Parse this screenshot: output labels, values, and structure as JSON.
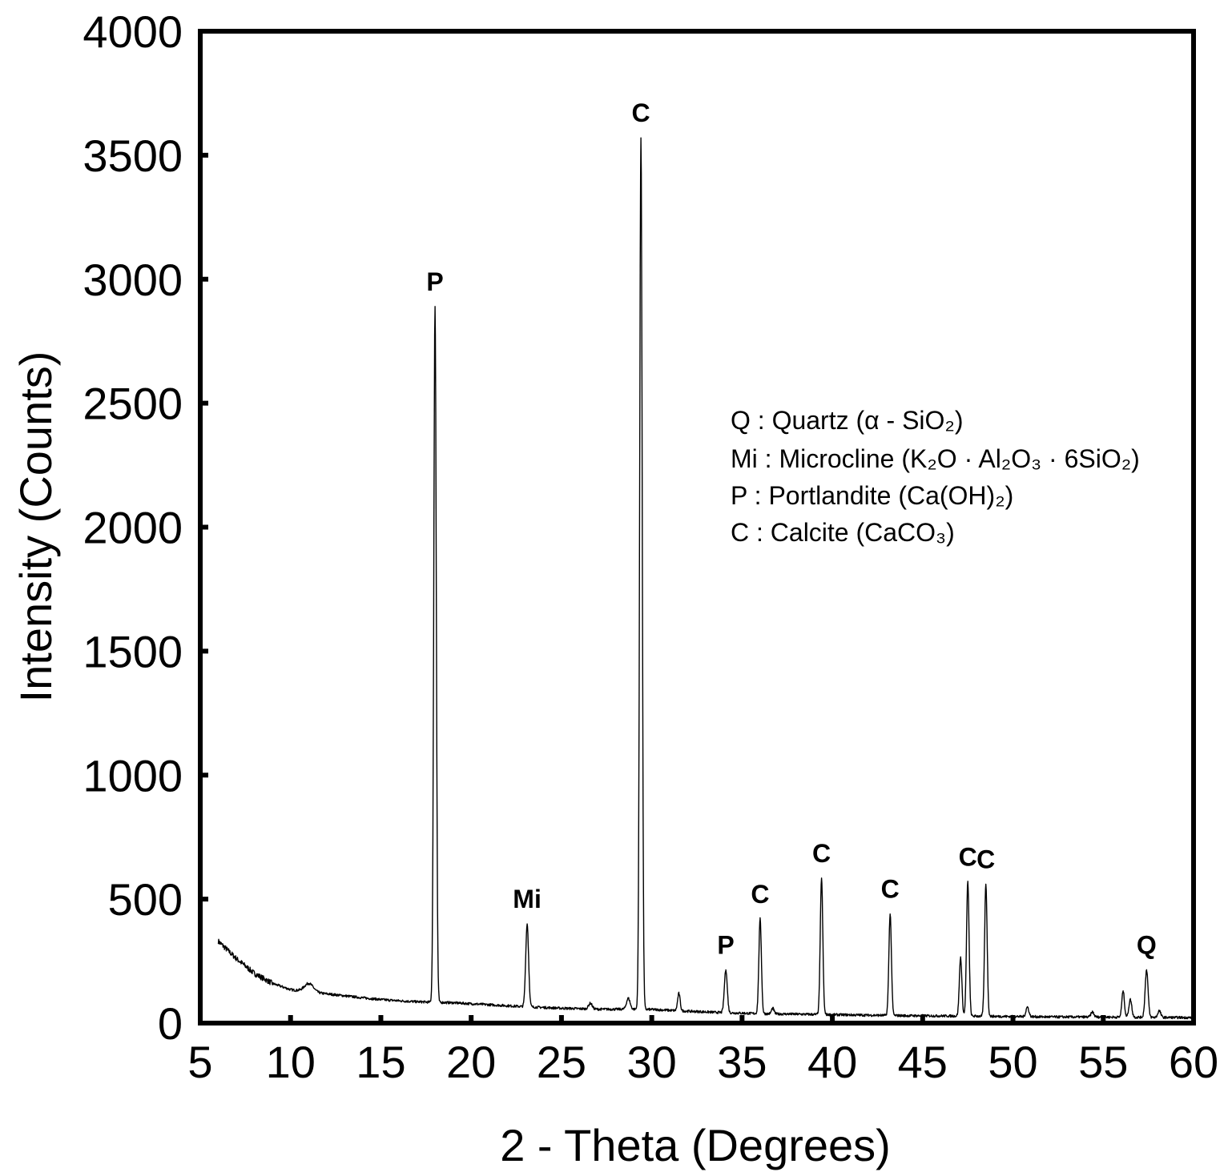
{
  "chart_data": {
    "type": "line",
    "xlabel": "2 - Theta (Degrees)",
    "ylabel": "Intensity (Counts)",
    "xlim": [
      5,
      60
    ],
    "ylim": [
      0,
      4000
    ],
    "x_ticks": [
      "5",
      "10",
      "15",
      "20",
      "25",
      "30",
      "35",
      "40",
      "45",
      "50",
      "55",
      "60"
    ],
    "y_ticks": [
      "0",
      "500",
      "1000",
      "1500",
      "2000",
      "2500",
      "3000",
      "3500",
      "4000"
    ],
    "grid": false,
    "legend_position": "upper-right",
    "legend": [
      "Q  : Quartz (α - SiO₂)",
      "Mi : Microcline (K₂O · Al₂O₃ · 6SiO₂)",
      "P  : Portlandite (Ca(OH)₂)",
      "C  : Calcite (CaCO₃)"
    ],
    "baseline": [
      [
        6.0,
        330
      ],
      [
        7.0,
        260
      ],
      [
        8.0,
        200
      ],
      [
        9.0,
        160
      ],
      [
        10.0,
        135
      ],
      [
        11.0,
        125
      ],
      [
        12.0,
        118
      ],
      [
        13.0,
        110
      ],
      [
        14.0,
        102
      ],
      [
        15.0,
        95
      ],
      [
        16.0,
        90
      ],
      [
        17.0,
        86
      ],
      [
        18.0,
        84
      ],
      [
        19.0,
        82
      ],
      [
        20.0,
        78
      ],
      [
        21.0,
        74
      ],
      [
        22.0,
        70
      ],
      [
        23.0,
        66
      ],
      [
        24.0,
        63
      ],
      [
        25.0,
        60
      ],
      [
        26.0,
        58
      ],
      [
        27.0,
        56
      ],
      [
        28.0,
        56
      ],
      [
        29.0,
        56
      ],
      [
        30.0,
        55
      ],
      [
        32.0,
        48
      ],
      [
        34.0,
        42
      ],
      [
        36.0,
        38
      ],
      [
        38.0,
        36
      ],
      [
        40.0,
        34
      ],
      [
        44.0,
        30
      ],
      [
        48.0,
        28
      ],
      [
        52.0,
        25
      ],
      [
        56.0,
        24
      ],
      [
        60.0,
        22
      ]
    ],
    "peaks": [
      {
        "x": 11.0,
        "y": 160,
        "w": 0.25
      },
      {
        "x": 18.0,
        "y": 2890,
        "w": 0.07,
        "label": "P"
      },
      {
        "x": 23.1,
        "y": 400,
        "w": 0.08,
        "label": "Mi"
      },
      {
        "x": 26.6,
        "y": 80,
        "w": 0.1
      },
      {
        "x": 28.7,
        "y": 100,
        "w": 0.1
      },
      {
        "x": 29.4,
        "y": 3570,
        "w": 0.07,
        "label": "C"
      },
      {
        "x": 31.5,
        "y": 120,
        "w": 0.07
      },
      {
        "x": 34.1,
        "y": 215,
        "w": 0.08,
        "label": "P"
      },
      {
        "x": 36.0,
        "y": 420,
        "w": 0.07,
        "label": "C"
      },
      {
        "x": 36.7,
        "y": 60,
        "w": 0.07
      },
      {
        "x": 39.4,
        "y": 585,
        "w": 0.07,
        "label": "C"
      },
      {
        "x": 43.2,
        "y": 440,
        "w": 0.07,
        "label": "C"
      },
      {
        "x": 47.1,
        "y": 265,
        "w": 0.07
      },
      {
        "x": 47.5,
        "y": 570,
        "w": 0.07,
        "label": "C"
      },
      {
        "x": 48.5,
        "y": 560,
        "w": 0.07,
        "label": "C"
      },
      {
        "x": 50.8,
        "y": 65,
        "w": 0.08
      },
      {
        "x": 54.4,
        "y": 45,
        "w": 0.08
      },
      {
        "x": 56.1,
        "y": 130,
        "w": 0.07
      },
      {
        "x": 56.5,
        "y": 95,
        "w": 0.08
      },
      {
        "x": 57.4,
        "y": 215,
        "w": 0.08,
        "label": "Q"
      },
      {
        "x": 58.1,
        "y": 50,
        "w": 0.08
      }
    ],
    "x_start": 6.0,
    "x_end": 60.0
  }
}
